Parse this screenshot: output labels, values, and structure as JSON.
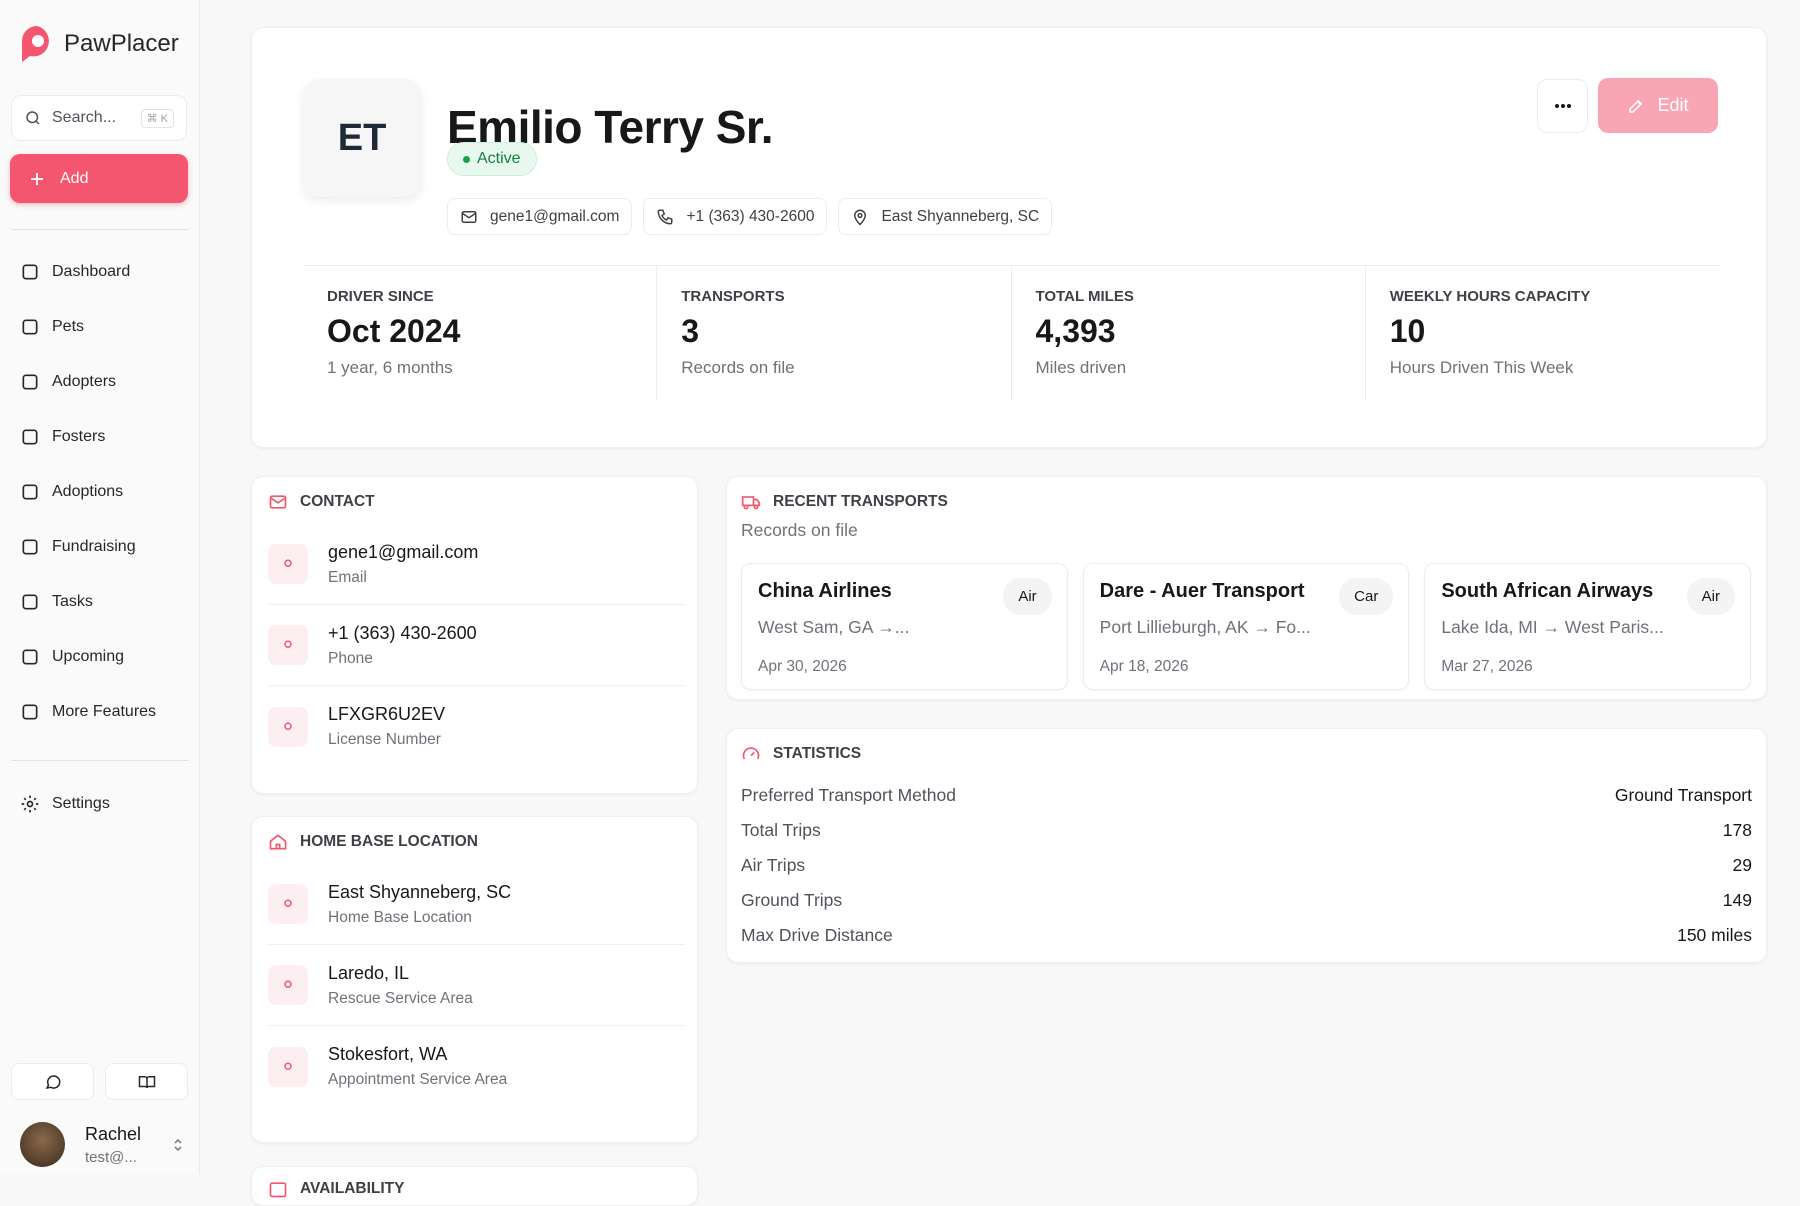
{
  "sidebar": {
    "brand": "PawPlacer",
    "search": "Search...",
    "shortcut": "⌘ K",
    "add": "Add",
    "nav": [
      "Dashboard",
      "Pets",
      "Adopters",
      "Fosters",
      "Adoptions",
      "Fundraising",
      "Tasks",
      "Upcoming",
      "More Features"
    ],
    "settings": "Settings",
    "user": {
      "name": "Rachel",
      "email": "test@..."
    }
  },
  "profile": {
    "initials": "ET",
    "name": "Emilio Terry Sr.",
    "status": "Active",
    "edit": "Edit",
    "email": "gene1@gmail.com",
    "phone": "+1 (363) 430-2600",
    "location": "East Shyanneberg, SC",
    "stats": [
      {
        "label": "DRIVER SINCE",
        "value": "Oct 2024",
        "sub": "1 year, 6 months"
      },
      {
        "label": "TRANSPORTS",
        "value": 3,
        "sub": "Records on file"
      },
      {
        "label": "TOTAL MILES",
        "value": "4,393",
        "sub": "Miles driven"
      },
      {
        "label": "WEEKLY HOURS CAPACITY",
        "value": 10,
        "sub": "Hours Driven This Week"
      }
    ]
  },
  "contact": {
    "title": "CONTACT",
    "items": [
      {
        "value": "gene1@gmail.com",
        "label": "Email"
      },
      {
        "value": "+1 (363) 430-2600",
        "label": "Phone"
      },
      {
        "value": "LFXGR6U2EV",
        "label": "License Number"
      }
    ]
  },
  "home_base": {
    "title": "HOME BASE LOCATION",
    "items": [
      {
        "value": "East Shyanneberg, SC",
        "label": "Home Base Location"
      },
      {
        "value": "Laredo, IL",
        "label": "Rescue Service Area"
      },
      {
        "value": "Stokesfort, WA",
        "label": "Appointment Service Area"
      }
    ]
  },
  "availability": {
    "title": "AVAILABILITY"
  },
  "recent_transports": {
    "title": "RECENT TRANSPORTS",
    "subtitle": "Records on file",
    "items": [
      {
        "name": "China Airlines",
        "mode": "Air",
        "route": "West Sam, GA →...",
        "date": "Apr 30, 2026"
      },
      {
        "name": "Dare - Auer Transport",
        "mode": "Car",
        "route": "Port Lillieburgh, AK → Fo...",
        "date": "Apr 18, 2026"
      },
      {
        "name": "South African Airways",
        "mode": "Air",
        "route": "Lake Ida, MI → West Paris...",
        "date": "Mar 27, 2026"
      }
    ]
  },
  "statistics": {
    "title": "STATISTICS",
    "rows": [
      [
        "Preferred Transport Method",
        "Ground Transport"
      ],
      [
        "Total Trips",
        178
      ],
      [
        "Air Trips",
        29
      ],
      [
        "Ground Trips",
        149
      ],
      [
        "Max Drive Distance",
        "150 miles"
      ]
    ]
  }
}
